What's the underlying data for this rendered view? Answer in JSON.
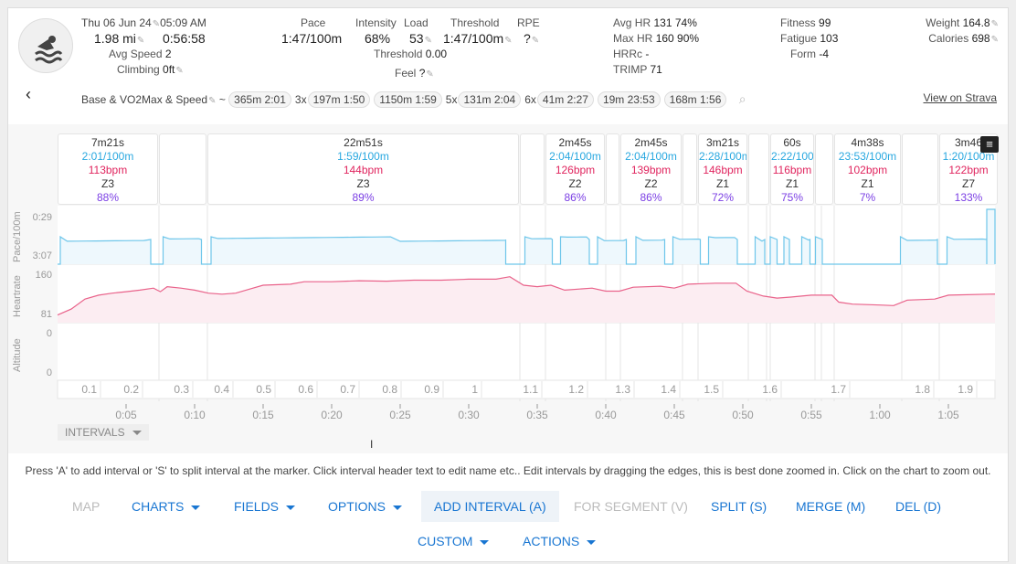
{
  "header": {
    "date": "Thu 06 Jun 24",
    "time": "05:09 AM",
    "distance": "1.98 mi",
    "duration": "0:56:58",
    "avg_speed_label": "Avg Speed",
    "avg_speed": "2",
    "climbing_label": "Climbing",
    "climbing": "0ft",
    "pace_label": "Pace",
    "pace": "1:47/100m",
    "intensity_label": "Intensity",
    "intensity": "68%",
    "load_label": "Load",
    "load": "53",
    "threshold_label": "Threshold",
    "threshold": "1:47/100m",
    "rpe_label": "RPE",
    "rpe": "?",
    "threshold2_label": "Threshold",
    "threshold2": "0.00",
    "feel_label": "Feel",
    "feel": "?",
    "avg_hr_label": "Avg HR",
    "avg_hr": "131  74%",
    "max_hr_label": "Max HR",
    "max_hr": "160  90%",
    "hrrc_label": "HRRc",
    "hrrc": "-",
    "trimp_label": "TRIMP",
    "trimp": "71",
    "fitness_label": "Fitness",
    "fitness": "99",
    "fatigue_label": "Fatigue",
    "fatigue": "103",
    "form_label": "Form",
    "form": "-4",
    "weight_label": "Weight",
    "weight": "164.8",
    "calories_label": "Calories",
    "calories": "698",
    "workout_name": "Base & VO2Max & Speed",
    "tilde": "~",
    "chips": [
      {
        "prefix": "",
        "text": "365m 2:01"
      },
      {
        "prefix": "3x",
        "text": "197m 1:50"
      },
      {
        "prefix": "",
        "text": "1150m 1:59"
      },
      {
        "prefix": "5x",
        "text": "131m 2:04"
      },
      {
        "prefix": "6x",
        "text": "41m 2:27"
      },
      {
        "prefix": "",
        "text": "19m 23:53"
      },
      {
        "prefix": "",
        "text": "168m 1:56"
      }
    ],
    "strava_link": "View on Strava"
  },
  "intervals": [
    {
      "dur": "7m21s",
      "pace": "2:01/100m",
      "hr": "113bpm",
      "zone": "Z3",
      "pct": "88%"
    },
    {
      "dur": "22m51s",
      "pace": "1:59/100m",
      "hr": "144bpm",
      "zone": "Z3",
      "pct": "89%"
    },
    {
      "dur": "2m45s",
      "pace": "2:04/100m",
      "hr": "126bpm",
      "zone": "Z2",
      "pct": "86%"
    },
    {
      "dur": "2m45s",
      "pace": "2:04/100m",
      "hr": "139bpm",
      "zone": "Z2",
      "pct": "86%"
    },
    {
      "dur": "3m21s",
      "pace": "2:28/100m",
      "hr": "146bpm",
      "zone": "Z1",
      "pct": "72%"
    },
    {
      "dur": "60s",
      "pace": "2:22/100m",
      "hr": "116bpm",
      "zone": "Z1",
      "pct": "75%"
    },
    {
      "dur": "4m38s",
      "pace": "23:53/100m",
      "hr": "102bpm",
      "zone": "Z1",
      "pct": "7%"
    },
    {
      "dur": "3m46",
      "pace": "1:20/100m",
      "hr": "122bpm",
      "zone": "Z7",
      "pct": "133%"
    }
  ],
  "chart": {
    "pace_label": "Pace/100m",
    "pace_ticks": [
      "0:29",
      "3:07"
    ],
    "hr_label": "Heartrate",
    "hr_ticks": [
      "160",
      "81"
    ],
    "alt_label": "Altitude",
    "alt_ticks": [
      "0",
      "0"
    ],
    "laps": [
      "0.1",
      "0.2",
      "0.3",
      "0.4",
      "0.5",
      "0.6",
      "0.7",
      "0.8",
      "0.9",
      "1",
      "1.1",
      "1.2",
      "1.3",
      "1.4",
      "1.5",
      "1.6",
      "1.7",
      "1.8",
      "1.9"
    ],
    "time_ticks": [
      "0:05",
      "0:10",
      "0:15",
      "0:20",
      "0:25",
      "0:30",
      "0:35",
      "0:40",
      "0:45",
      "0:50",
      "0:55",
      "1:00",
      "1:05"
    ],
    "hr_samples": [
      [
        0,
        78
      ],
      [
        1,
        90
      ],
      [
        2,
        110
      ],
      [
        3,
        118
      ],
      [
        4,
        122
      ],
      [
        5,
        125
      ],
      [
        6,
        128
      ],
      [
        7,
        132
      ],
      [
        7.5,
        125
      ],
      [
        8,
        135
      ],
      [
        9,
        132
      ],
      [
        10,
        128
      ],
      [
        11,
        122
      ],
      [
        12,
        120
      ],
      [
        13,
        122
      ],
      [
        14,
        130
      ],
      [
        15,
        138
      ],
      [
        17,
        140
      ],
      [
        18,
        145
      ],
      [
        20,
        145
      ],
      [
        22,
        147
      ],
      [
        24,
        146
      ],
      [
        26,
        148
      ],
      [
        28,
        148
      ],
      [
        30,
        150
      ],
      [
        32,
        150
      ],
      [
        33,
        155
      ],
      [
        34,
        138
      ],
      [
        35,
        135
      ],
      [
        36,
        138
      ],
      [
        37,
        128
      ],
      [
        39,
        132
      ],
      [
        40,
        126
      ],
      [
        41,
        126
      ],
      [
        42,
        134
      ],
      [
        44,
        136
      ],
      [
        45,
        132
      ],
      [
        46,
        140
      ],
      [
        48,
        142
      ],
      [
        49.5,
        142
      ],
      [
        50.3,
        126
      ],
      [
        51.5,
        116
      ],
      [
        52.5,
        112
      ],
      [
        53.5,
        114
      ],
      [
        55,
        118
      ],
      [
        56.5,
        118
      ],
      [
        57,
        104
      ],
      [
        58,
        100
      ],
      [
        60,
        98
      ],
      [
        61,
        97
      ],
      [
        62,
        108
      ],
      [
        64,
        110
      ],
      [
        65,
        118
      ],
      [
        68,
        120
      ]
    ],
    "swim_segments": [
      [
        0.2,
        6.8
      ],
      [
        7.7,
        10.5
      ],
      [
        11.2,
        32.7
      ],
      [
        34.1,
        36.1
      ],
      [
        36.7,
        38.8
      ],
      [
        39.4,
        41.5
      ],
      [
        42.2,
        44.3
      ],
      [
        44.9,
        46.9
      ],
      [
        47.5,
        49.6
      ],
      [
        50.9,
        51.6
      ],
      [
        52,
        52.5
      ],
      [
        53,
        53.4
      ],
      [
        54.3,
        54.9
      ],
      [
        55.3,
        55.8
      ],
      [
        61.5,
        64.2
      ],
      [
        64.9,
        67.8
      ]
    ],
    "intervals_menu": "INTERVALS"
  },
  "help_text": "Press 'A' to add interval or 'S' to split interval at the marker. Click interval header text to edit name etc.. Edit intervals by dragging the edges, this is best done zoomed in. Click on the chart to zoom out.",
  "buttons": {
    "map": "MAP",
    "charts": "CHARTS",
    "fields": "FIELDS",
    "options": "OPTIONS",
    "add_interval": "ADD INTERVAL (A)",
    "for_segment": "FOR SEGMENT (V)",
    "split": "SPLIT (S)",
    "merge": "MERGE (M)",
    "del": "DEL (D)",
    "custom": "CUSTOM",
    "actions": "ACTIONS"
  },
  "colors": {
    "pace": "#6ec6ea",
    "hr": "#e9628a",
    "accent": "#1976d2"
  }
}
